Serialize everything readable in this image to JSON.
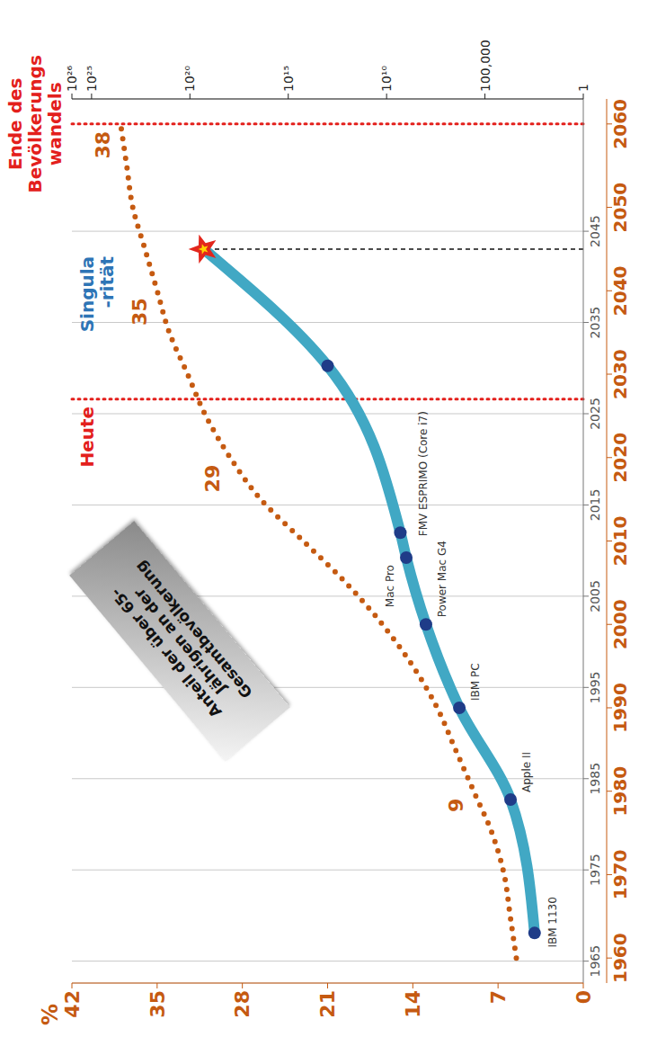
{
  "chart_data": {
    "type": "line",
    "ylabel": "%",
    "xlim": [
      1957,
      2063
    ],
    "xticks": [
      1960,
      1970,
      1980,
      1990,
      2000,
      2010,
      2020,
      2030,
      2040,
      2050,
      2060
    ],
    "x2lim": [
      1962.6,
      2059.5
    ],
    "x2ticks": [
      1965,
      1975,
      1985,
      1995,
      2005,
      2015,
      2025,
      2035,
      2045
    ],
    "ylim": [
      0,
      42
    ],
    "yticks": [
      0,
      7,
      14,
      21,
      28,
      35,
      42
    ],
    "y2lim": [
      1,
      1e+26
    ],
    "y2ticks": [
      1,
      {
        "value": 100000,
        "label": "100,000"
      },
      {
        "value": 10000000000.0,
        "label": "10¹⁰"
      },
      {
        "value": 1000000000000000.0,
        "label": "10¹⁵"
      },
      {
        "value": 1e+20,
        "label": "10²⁰"
      },
      {
        "value": 1e+25,
        "label": "10²⁵"
      },
      {
        "value": 1e+26,
        "label": "10²⁶"
      }
    ],
    "log": "y2",
    "grid": true,
    "series": [
      {
        "name": "Anteil der über 65-\nJährigen an der\nGesamtbevölkerung",
        "color": "#c55a11",
        "line_style": "dotted",
        "x": [
          1960,
          1965,
          1970,
          1975,
          1980,
          1985,
          1990,
          1995,
          2000,
          2005,
          2010,
          2015,
          2020,
          2025,
          2030,
          2035,
          2040,
          2045,
          2050,
          2055,
          2060
        ],
        "values": [
          5.5,
          6,
          6.5,
          7.5,
          9,
          10.5,
          12,
          14,
          16.5,
          19.5,
          23,
          26.5,
          29,
          31,
          32.5,
          34,
          35,
          36,
          37,
          37.5,
          38
        ],
        "labeled_x": [
          1980,
          2020,
          2040,
          2060
        ]
      },
      {
        "axis": "y2",
        "color": "#41a8c4",
        "marker": "circle",
        "line_style": "solid",
        "x": [
          1963,
          1979,
          1990,
          2000,
          2008,
          2011,
          2031,
          2045
        ],
        "values": [
          300,
          5000,
          2000000,
          100000000,
          1000000000,
          2000000000,
          10000000000000,
          2e+19
        ],
        "point_labels": [
          "IBM 1130",
          "Apple II",
          "IBM PC",
          "Power Mac G4",
          "Mac Pro",
          "FMV ESPRIMO (Core i7)",
          null,
          null
        ]
      }
    ],
    "annotations": [
      {
        "text": "Heute",
        "x": 2027,
        "color": "#e3201c"
      },
      {
        "text": "Ende des\nBevölkerungs\nwandels",
        "x": 2060,
        "color": "#e3201c"
      },
      {
        "text": "Singula\n-rität",
        "x": 2045,
        "color": "#2e75b6"
      }
    ]
  }
}
